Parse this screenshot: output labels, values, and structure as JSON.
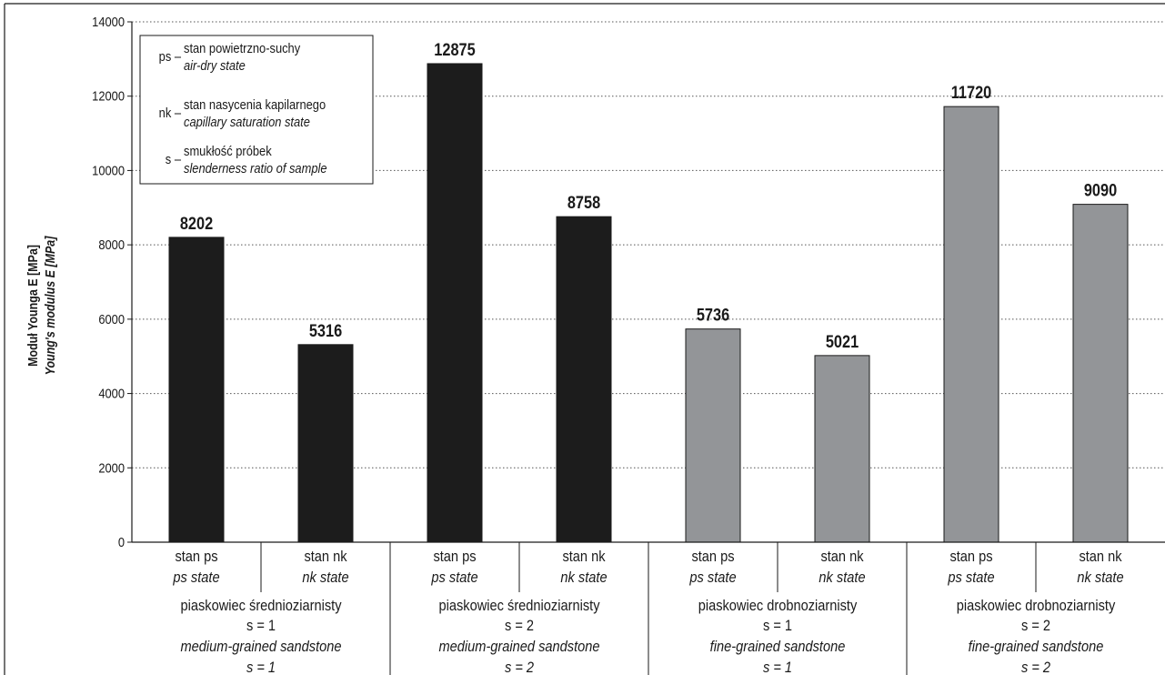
{
  "chart_data": {
    "type": "bar",
    "ylabel": "Moduł Younga E [MPa]",
    "ylabel_en": "Young's modulus E [MPa]",
    "ylim": [
      0,
      14000
    ],
    "yticks": [
      "0",
      "2000",
      "4000",
      "6000",
      "8000",
      "10000",
      "12000",
      "14000"
    ],
    "grid": "horizontal dotted",
    "colors": {
      "medium": "#1c1c1c",
      "fine": "#939598"
    },
    "bars": [
      {
        "value": 8202,
        "label": "8202",
        "state_pl": "stan ps",
        "state_en": "ps state",
        "color": "medium"
      },
      {
        "value": 5316,
        "label": "5316",
        "state_pl": "stan nk",
        "state_en": "nk state",
        "color": "medium"
      },
      {
        "value": 12875,
        "label": "12875",
        "state_pl": "stan ps",
        "state_en": "ps state",
        "color": "medium"
      },
      {
        "value": 8758,
        "label": "8758",
        "state_pl": "stan nk",
        "state_en": "nk state",
        "color": "medium"
      },
      {
        "value": 5736,
        "label": "5736",
        "state_pl": "stan ps",
        "state_en": "ps state",
        "color": "fine"
      },
      {
        "value": 5021,
        "label": "5021",
        "state_pl": "stan nk",
        "state_en": "nk state",
        "color": "fine"
      },
      {
        "value": 11720,
        "label": "11720",
        "state_pl": "stan ps",
        "state_en": "ps state",
        "color": "fine"
      },
      {
        "value": 9090,
        "label": "9090",
        "state_pl": "stan nk",
        "state_en": "nk state",
        "color": "fine"
      }
    ],
    "groups": [
      {
        "pl": "piaskowiec średnioziarnisty",
        "s": "s = 1",
        "en": "medium-grained sandstone",
        "s_en": "s = 1"
      },
      {
        "pl": "piaskowiec średnioziarnisty",
        "s": "s = 2",
        "en": "medium-grained sandstone",
        "s_en": "s = 2"
      },
      {
        "pl": "piaskowiec drobnoziarnisty",
        "s": "s = 1",
        "en": "fine-grained sandstone",
        "s_en": "s = 1"
      },
      {
        "pl": "piaskowiec drobnoziarnisty",
        "s": "s = 2",
        "en": "fine-grained sandstone",
        "s_en": "s = 2"
      }
    ],
    "legend": {
      "placement": "top-left",
      "entries": [
        {
          "abbr": "ps –",
          "pl": "stan powietrzno-suchy",
          "en": "air-dry state"
        },
        {
          "abbr": "nk –",
          "pl": "stan nasycenia kapilarnego",
          "en": "capillary saturation state"
        },
        {
          "abbr": "s –",
          "pl": "smukłość próbek",
          "en": "slenderness ratio of sample"
        }
      ]
    }
  }
}
